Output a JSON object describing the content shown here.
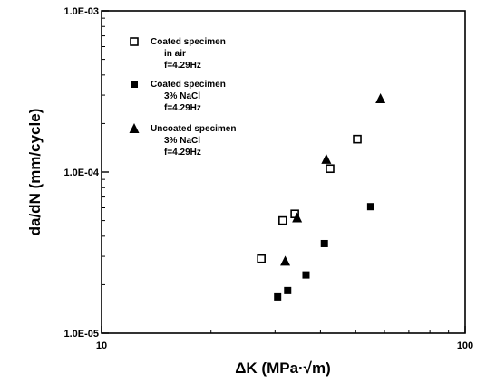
{
  "chart_data": {
    "type": "scatter",
    "xscale": "log",
    "yscale": "log",
    "xlim": [
      10,
      100
    ],
    "ylim": [
      1e-05,
      0.001
    ],
    "x_ticks": [
      10,
      100
    ],
    "x_tick_labels": [
      "10",
      "100"
    ],
    "y_ticks": [
      1e-05,
      0.0001,
      0.001
    ],
    "y_tick_labels": [
      "1.0E-05",
      "1.0E-04",
      "1.0E-03"
    ],
    "xlabel": "ΔK (MPa·√m)",
    "ylabel": "da/dN (mm/cycle)",
    "grid": false,
    "legend_placement": "top-left",
    "series": [
      {
        "marker": "open-square",
        "legend_lines": [
          "Coated specimen",
          "in air",
          "f=4.29Hz"
        ],
        "points": [
          {
            "x": 27.5,
            "y": 2.9e-05
          },
          {
            "x": 31.5,
            "y": 5e-05
          },
          {
            "x": 34.0,
            "y": 5.5e-05
          },
          {
            "x": 42.5,
            "y": 0.000105
          },
          {
            "x": 50.5,
            "y": 0.00016
          }
        ]
      },
      {
        "marker": "filled-square",
        "legend_lines": [
          "Coated specimen",
          "3% NaCl",
          "f=4.29Hz"
        ],
        "points": [
          {
            "x": 30.5,
            "y": 1.68e-05
          },
          {
            "x": 32.5,
            "y": 1.84e-05
          },
          {
            "x": 36.5,
            "y": 2.3e-05
          },
          {
            "x": 41.0,
            "y": 3.6e-05
          },
          {
            "x": 55.0,
            "y": 6.1e-05
          }
        ]
      },
      {
        "marker": "filled-triangle",
        "legend_lines": [
          "Uncoated specimen",
          "3% NaCl",
          "f=4.29Hz"
        ],
        "points": [
          {
            "x": 32.0,
            "y": 2.8e-05
          },
          {
            "x": 34.5,
            "y": 5.2e-05
          },
          {
            "x": 41.5,
            "y": 0.00012
          },
          {
            "x": 58.5,
            "y": 0.000285
          }
        ]
      }
    ]
  }
}
